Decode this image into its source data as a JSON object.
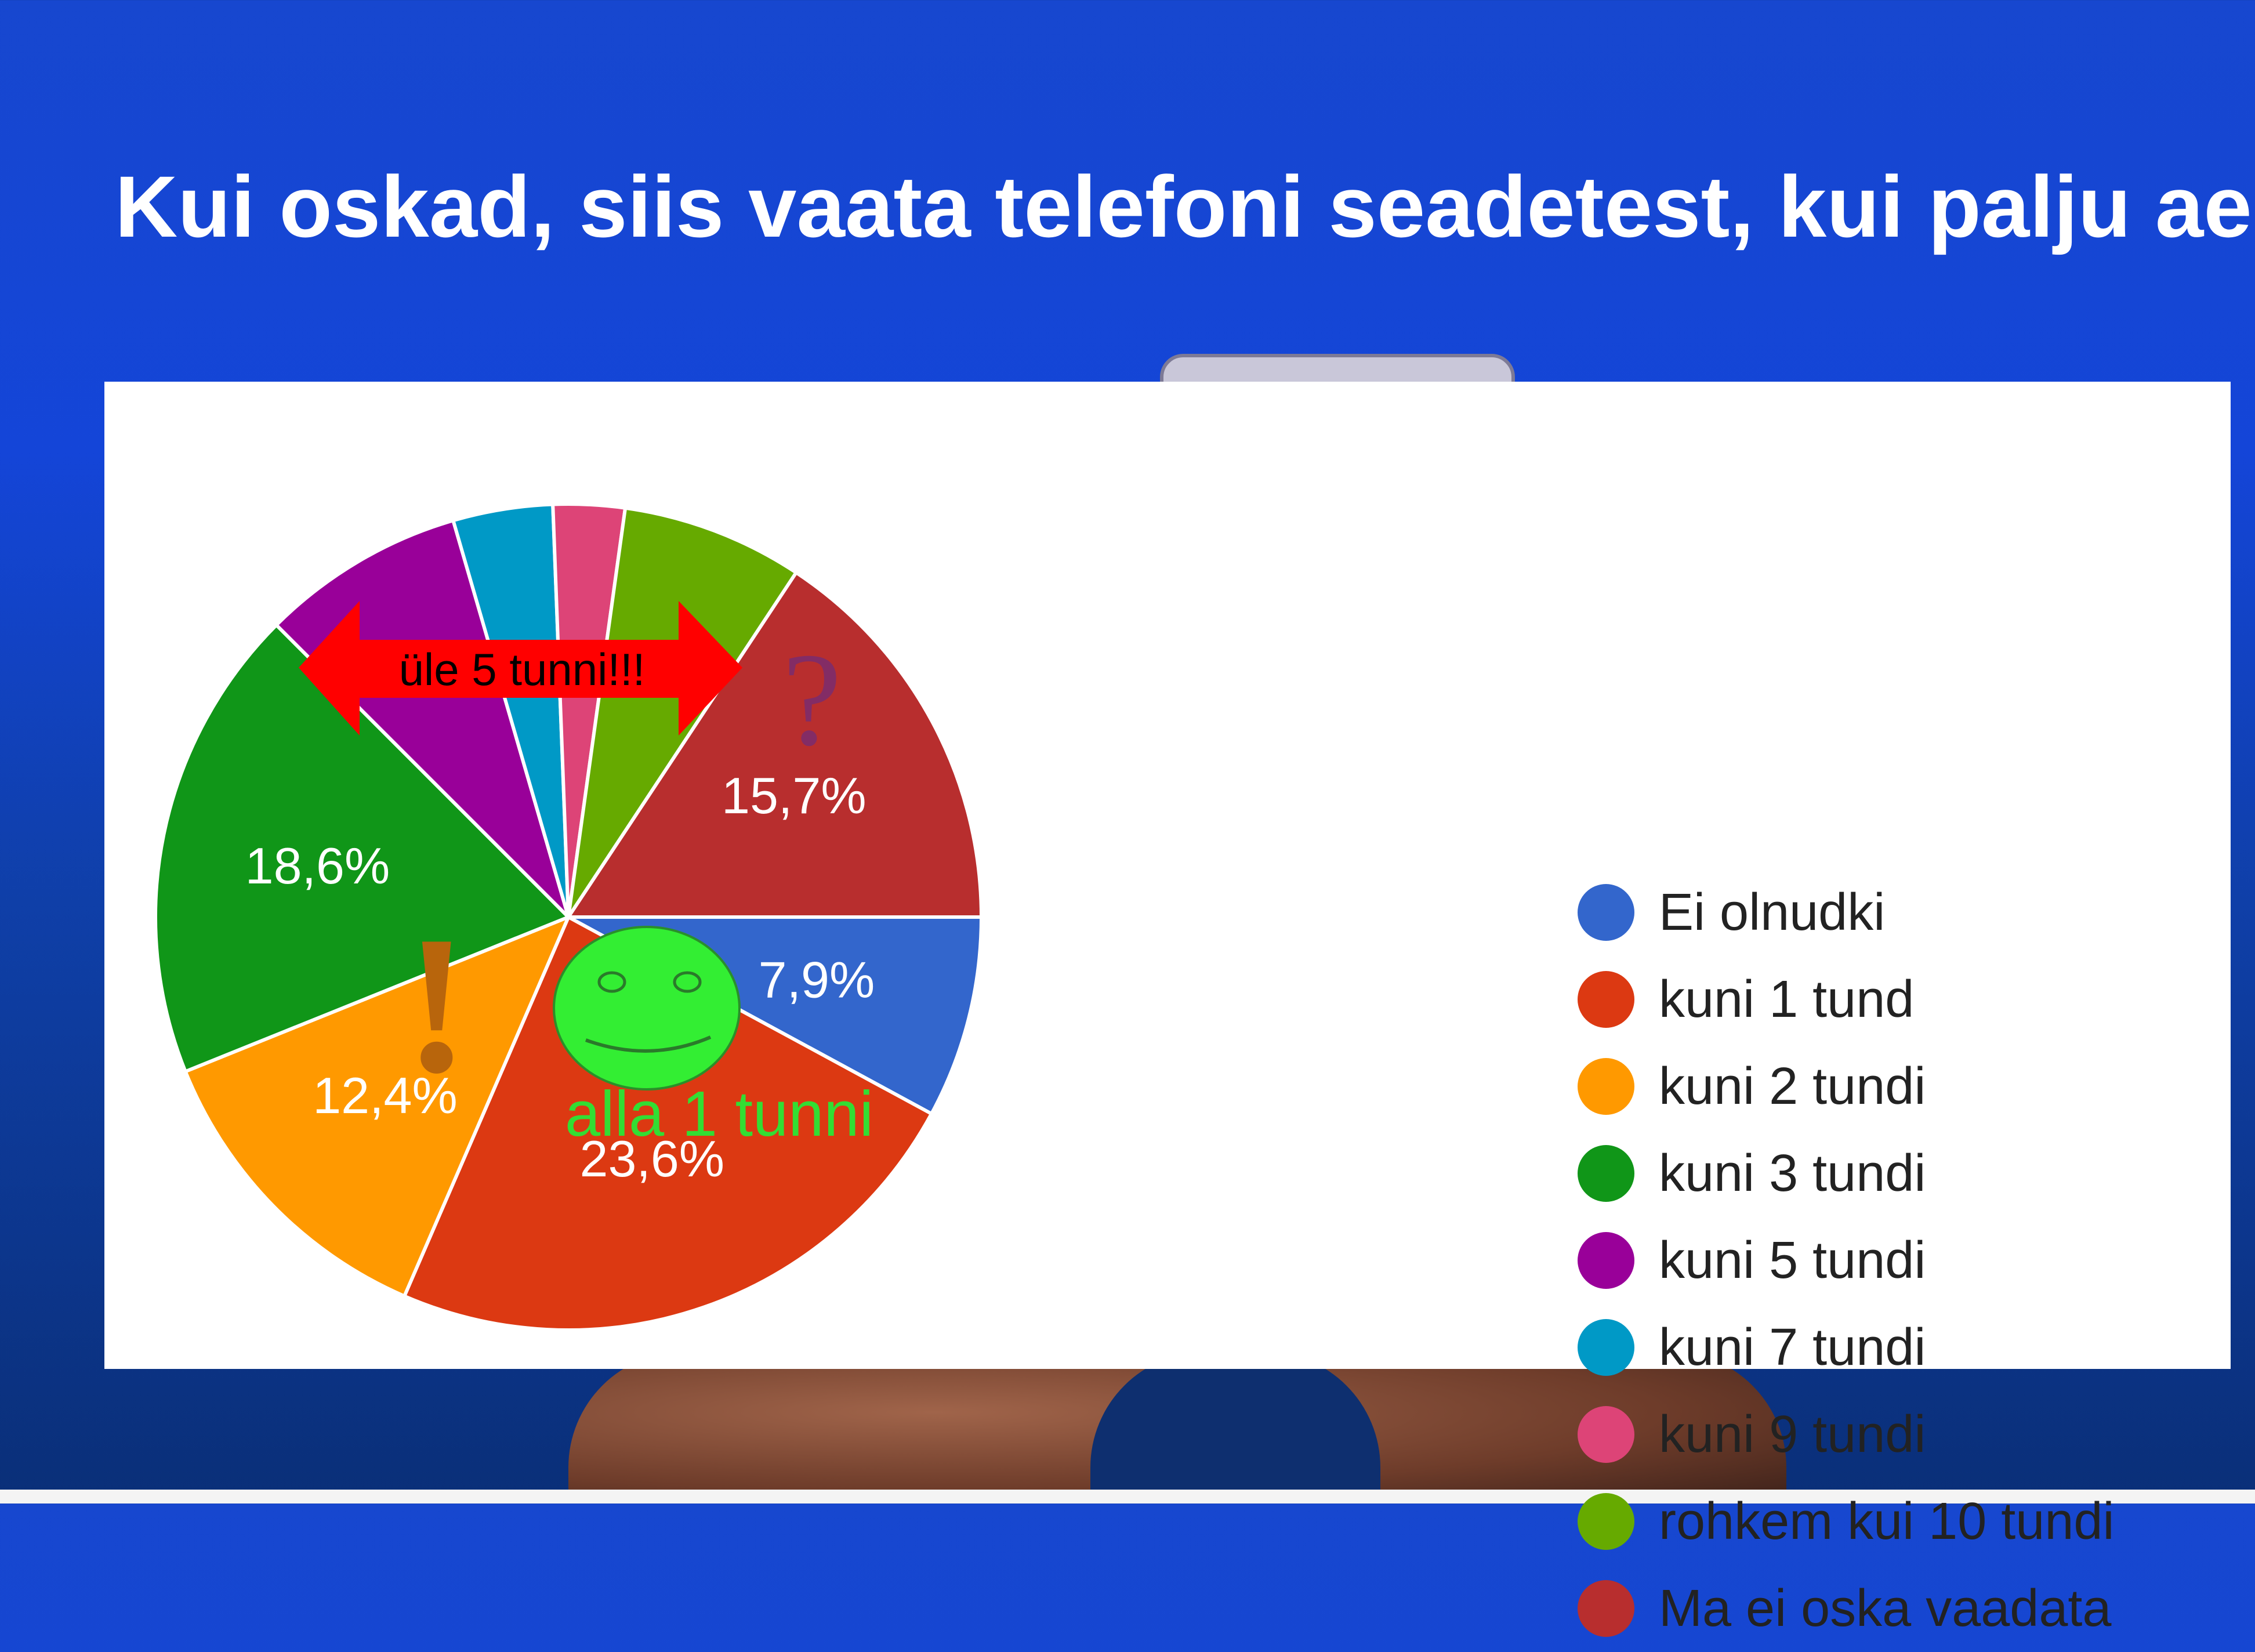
{
  "title": "Kui oskad, siis vaata telefoni seadetest, kui palju aega veetsid eile telefonis?",
  "chart_data": {
    "type": "pie",
    "categories": [
      "Ei olnudki",
      "kuni 1 tund",
      "kuni 2 tundi",
      "kuni 3 tundi",
      "kuni 5 tundi",
      "kuni 7 tundi",
      "kuni 9 tundi",
      "rohkem kui 10 tundi",
      "Ma ei oska vaadata"
    ],
    "values": [
      7.9,
      23.6,
      12.4,
      18.6,
      8.0,
      3.9,
      2.8,
      7.1,
      15.7
    ],
    "value_labels": [
      "7,9%",
      "23,6%",
      "12,4%",
      "18,6%",
      "",
      "",
      "",
      "",
      "15,7%"
    ],
    "colors": [
      "#3366cc",
      "#dc3912",
      "#ff9900",
      "#109618",
      "#990099",
      "#0099c6",
      "#dd4477",
      "#66aa00",
      "#b82e2e"
    ],
    "legend_position": "right"
  },
  "annotations": {
    "arrow_text": "üle 5 tunni!!!",
    "question_mark": "?",
    "exclamation_mark": "!",
    "smiley_text": "alla 1 tunni"
  }
}
